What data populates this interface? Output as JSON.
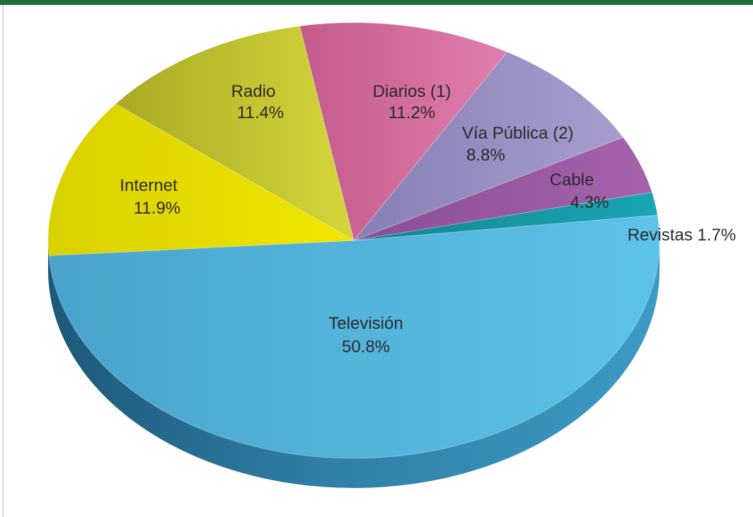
{
  "chart_data": {
    "type": "pie",
    "style": "3d",
    "categories": [
      "Televisión",
      "Revistas",
      "Cable",
      "Vía Pública (2)",
      "Diarios (1)",
      "Radio",
      "Internet"
    ],
    "values": [
      50.8,
      1.7,
      4.3,
      8.8,
      11.2,
      11.4,
      11.9
    ],
    "value_labels": [
      "50.8%",
      "1.7%",
      "4.3%",
      "8.8%",
      "11.2%",
      "11.4%",
      "11.9%"
    ],
    "colors": [
      "#55b6de",
      "#1a9aa8",
      "#9b5aa4",
      "#9a8dc4",
      "#d26f9f",
      "#c6ca2c",
      "#eede06"
    ],
    "title": "",
    "legend": "none"
  },
  "colors": {
    "top_bar": "#1f6b3c",
    "side_television": "#2f7fa6"
  }
}
